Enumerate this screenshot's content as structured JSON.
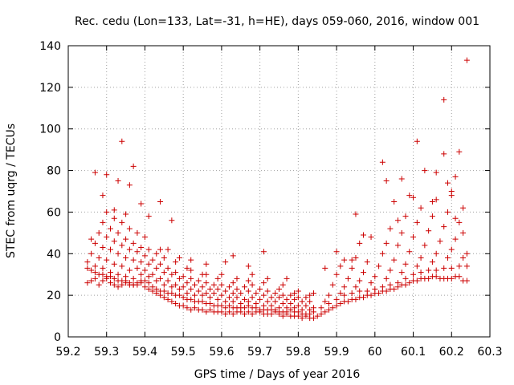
{
  "chart_data": {
    "type": "scatter",
    "title": "Rec. cedu (Lon=133, Lat=-31, h=HE), days 059-060, 2016, window 001",
    "xlabel": "GPS time / Days of year 2016",
    "ylabel": "STEC from uqrg / TECUs",
    "xlim": [
      59.2,
      60.3
    ],
    "ylim": [
      0,
      140
    ],
    "xticks": [
      "59.2",
      "59.3",
      "59.4",
      "59.5",
      "59.6",
      "59.7",
      "59.8",
      "59.9",
      "60",
      "60.1",
      "60.2",
      "60.3"
    ],
    "yticks": [
      "0",
      "20",
      "40",
      "60",
      "80",
      "100",
      "120",
      "140"
    ],
    "marker": "+",
    "color": "#cc0000",
    "points": [
      [
        59.25,
        26
      ],
      [
        59.26,
        27
      ],
      [
        59.27,
        28
      ],
      [
        59.28,
        25
      ],
      [
        59.29,
        27
      ],
      [
        59.3,
        28
      ],
      [
        59.31,
        26
      ],
      [
        59.32,
        25
      ],
      [
        59.33,
        24
      ],
      [
        59.34,
        25
      ],
      [
        59.35,
        26
      ],
      [
        59.36,
        25
      ],
      [
        59.37,
        25
      ],
      [
        59.38,
        26
      ],
      [
        59.39,
        27
      ],
      [
        59.4,
        24
      ],
      [
        59.41,
        23
      ],
      [
        59.42,
        22
      ],
      [
        59.43,
        21
      ],
      [
        59.44,
        20
      ],
      [
        59.45,
        19
      ],
      [
        59.46,
        18
      ],
      [
        59.47,
        17
      ],
      [
        59.48,
        16
      ],
      [
        59.49,
        15
      ],
      [
        59.5,
        15
      ],
      [
        59.51,
        14
      ],
      [
        59.52,
        13
      ],
      [
        59.53,
        14
      ],
      [
        59.54,
        13
      ],
      [
        59.55,
        13
      ],
      [
        59.56,
        12
      ],
      [
        59.57,
        13
      ],
      [
        59.58,
        12
      ],
      [
        59.59,
        12
      ],
      [
        59.6,
        12
      ],
      [
        59.61,
        11
      ],
      [
        59.62,
        12
      ],
      [
        59.63,
        11
      ],
      [
        59.64,
        12
      ],
      [
        59.65,
        12
      ],
      [
        59.66,
        11
      ],
      [
        59.67,
        12
      ],
      [
        59.68,
        11
      ],
      [
        59.69,
        12
      ],
      [
        59.7,
        12
      ],
      [
        59.71,
        11
      ],
      [
        59.72,
        11
      ],
      [
        59.73,
        11
      ],
      [
        59.74,
        12
      ],
      [
        59.75,
        11
      ],
      [
        59.76,
        10
      ],
      [
        59.77,
        11
      ],
      [
        59.78,
        10
      ],
      [
        59.79,
        10
      ],
      [
        59.8,
        10
      ],
      [
        59.81,
        9
      ],
      [
        59.82,
        10
      ],
      [
        59.83,
        9
      ],
      [
        59.84,
        9
      ],
      [
        59.85,
        10
      ],
      [
        59.86,
        11
      ],
      [
        59.87,
        12
      ],
      [
        59.88,
        13
      ],
      [
        59.89,
        14
      ],
      [
        59.9,
        15
      ],
      [
        59.91,
        16
      ],
      [
        59.92,
        17
      ],
      [
        59.93,
        17
      ],
      [
        59.94,
        18
      ],
      [
        59.95,
        18
      ],
      [
        59.96,
        19
      ],
      [
        59.97,
        19
      ],
      [
        59.98,
        20
      ],
      [
        59.99,
        20
      ],
      [
        60.0,
        21
      ],
      [
        60.01,
        21
      ],
      [
        60.02,
        22
      ],
      [
        60.03,
        22
      ],
      [
        60.04,
        23
      ],
      [
        60.05,
        23
      ],
      [
        60.06,
        24
      ],
      [
        60.07,
        25
      ],
      [
        60.08,
        25
      ],
      [
        60.09,
        26
      ],
      [
        60.1,
        27
      ],
      [
        60.11,
        27
      ],
      [
        60.12,
        28
      ],
      [
        60.13,
        28
      ],
      [
        60.14,
        28
      ],
      [
        60.15,
        29
      ],
      [
        60.16,
        29
      ],
      [
        60.17,
        28
      ],
      [
        60.18,
        28
      ],
      [
        60.19,
        28
      ],
      [
        60.2,
        28
      ],
      [
        60.21,
        29
      ],
      [
        60.22,
        29
      ],
      [
        60.23,
        27
      ],
      [
        60.24,
        27
      ],
      [
        59.25,
        33
      ],
      [
        59.26,
        32
      ],
      [
        59.27,
        31
      ],
      [
        59.28,
        30
      ],
      [
        59.29,
        30
      ],
      [
        59.3,
        29
      ],
      [
        59.31,
        29
      ],
      [
        59.32,
        28
      ],
      [
        59.33,
        27
      ],
      [
        59.34,
        27
      ],
      [
        59.35,
        27
      ],
      [
        59.36,
        26
      ],
      [
        59.37,
        25
      ],
      [
        59.38,
        25
      ],
      [
        59.39,
        26
      ],
      [
        59.4,
        27
      ],
      [
        59.41,
        26
      ],
      [
        59.42,
        24
      ],
      [
        59.43,
        23
      ],
      [
        59.44,
        22
      ],
      [
        59.45,
        22
      ],
      [
        59.46,
        21
      ],
      [
        59.47,
        21
      ],
      [
        59.48,
        20
      ],
      [
        59.49,
        20
      ],
      [
        59.5,
        19
      ],
      [
        59.51,
        18
      ],
      [
        59.52,
        18
      ],
      [
        59.53,
        17
      ],
      [
        59.54,
        17
      ],
      [
        59.55,
        17
      ],
      [
        59.56,
        16
      ],
      [
        59.57,
        16
      ],
      [
        59.58,
        15
      ],
      [
        59.59,
        15
      ],
      [
        59.6,
        15
      ],
      [
        59.61,
        14
      ],
      [
        59.62,
        15
      ],
      [
        59.63,
        14
      ],
      [
        59.64,
        14
      ],
      [
        59.65,
        14
      ],
      [
        59.66,
        14
      ],
      [
        59.67,
        15
      ],
      [
        59.68,
        14
      ],
      [
        59.69,
        14
      ],
      [
        59.7,
        13
      ],
      [
        59.71,
        13
      ],
      [
        59.72,
        13
      ],
      [
        59.73,
        13
      ],
      [
        59.74,
        13
      ],
      [
        59.75,
        12
      ],
      [
        59.76,
        12
      ],
      [
        59.77,
        12
      ],
      [
        59.78,
        13
      ],
      [
        59.79,
        12
      ],
      [
        59.8,
        12
      ],
      [
        59.81,
        11
      ],
      [
        59.82,
        11
      ],
      [
        59.83,
        11
      ],
      [
        59.84,
        12
      ],
      [
        59.86,
        14
      ],
      [
        59.88,
        16
      ],
      [
        59.9,
        18
      ],
      [
        59.92,
        20
      ],
      [
        59.94,
        21
      ],
      [
        59.96,
        22
      ],
      [
        59.98,
        22
      ],
      [
        60.0,
        23
      ],
      [
        60.02,
        24
      ],
      [
        60.04,
        25
      ],
      [
        60.06,
        26
      ],
      [
        60.08,
        28
      ],
      [
        60.1,
        30
      ],
      [
        60.12,
        31
      ],
      [
        60.14,
        32
      ],
      [
        60.16,
        32
      ],
      [
        60.18,
        33
      ],
      [
        60.2,
        33
      ],
      [
        60.22,
        34
      ],
      [
        60.24,
        34
      ],
      [
        59.25,
        36
      ],
      [
        59.27,
        34
      ],
      [
        59.29,
        33
      ],
      [
        59.31,
        31
      ],
      [
        59.33,
        30
      ],
      [
        59.35,
        29
      ],
      [
        59.37,
        28
      ],
      [
        59.39,
        30
      ],
      [
        59.41,
        29
      ],
      [
        59.43,
        27
      ],
      [
        59.45,
        25
      ],
      [
        59.47,
        24
      ],
      [
        59.49,
        23
      ],
      [
        59.51,
        21
      ],
      [
        59.53,
        20
      ],
      [
        59.55,
        20
      ],
      [
        59.57,
        19
      ],
      [
        59.59,
        18
      ],
      [
        59.61,
        17
      ],
      [
        59.63,
        17
      ],
      [
        59.65,
        16
      ],
      [
        59.67,
        17
      ],
      [
        59.69,
        16
      ],
      [
        59.71,
        15
      ],
      [
        59.73,
        15
      ],
      [
        59.75,
        14
      ],
      [
        59.77,
        14
      ],
      [
        59.79,
        14
      ],
      [
        59.81,
        13
      ],
      [
        59.83,
        13
      ],
      [
        59.87,
        17
      ],
      [
        59.91,
        21
      ],
      [
        59.95,
        24
      ],
      [
        59.99,
        26
      ],
      [
        60.03,
        28
      ],
      [
        60.07,
        31
      ],
      [
        60.11,
        34
      ],
      [
        60.15,
        36
      ],
      [
        60.19,
        38
      ],
      [
        60.23,
        38
      ],
      [
        59.26,
        40
      ],
      [
        59.28,
        38
      ],
      [
        59.3,
        37
      ],
      [
        59.32,
        35
      ],
      [
        59.34,
        34
      ],
      [
        59.36,
        32
      ],
      [
        59.38,
        33
      ],
      [
        59.4,
        32
      ],
      [
        59.42,
        30
      ],
      [
        59.44,
        28
      ],
      [
        59.46,
        27
      ],
      [
        59.48,
        25
      ],
      [
        59.5,
        24
      ],
      [
        59.52,
        23
      ],
      [
        59.54,
        22
      ],
      [
        59.56,
        21
      ],
      [
        59.58,
        21
      ],
      [
        59.6,
        20
      ],
      [
        59.62,
        19
      ],
      [
        59.64,
        19
      ],
      [
        59.66,
        18
      ],
      [
        59.68,
        19
      ],
      [
        59.7,
        18
      ],
      [
        59.72,
        17
      ],
      [
        59.74,
        17
      ],
      [
        59.76,
        16
      ],
      [
        59.78,
        16
      ],
      [
        59.8,
        15
      ],
      [
        59.82,
        15
      ],
      [
        59.84,
        14
      ],
      [
        59.88,
        20
      ],
      [
        59.92,
        24
      ],
      [
        59.96,
        27
      ],
      [
        60.0,
        29
      ],
      [
        60.04,
        32
      ],
      [
        60.08,
        35
      ],
      [
        60.12,
        38
      ],
      [
        60.16,
        40
      ],
      [
        60.2,
        42
      ],
      [
        60.24,
        40
      ],
      [
        59.27,
        45
      ],
      [
        59.29,
        43
      ],
      [
        59.31,
        42
      ],
      [
        59.33,
        40
      ],
      [
        59.35,
        38
      ],
      [
        59.37,
        37
      ],
      [
        59.39,
        36
      ],
      [
        59.41,
        35
      ],
      [
        59.43,
        33
      ],
      [
        59.45,
        31
      ],
      [
        59.47,
        30
      ],
      [
        59.49,
        28
      ],
      [
        59.51,
        26
      ],
      [
        59.53,
        25
      ],
      [
        59.55,
        24
      ],
      [
        59.57,
        23
      ],
      [
        59.59,
        23
      ],
      [
        59.61,
        22
      ],
      [
        59.63,
        21
      ],
      [
        59.65,
        21
      ],
      [
        59.67,
        22
      ],
      [
        59.69,
        21
      ],
      [
        59.71,
        20
      ],
      [
        59.73,
        19
      ],
      [
        59.75,
        19
      ],
      [
        59.77,
        18
      ],
      [
        59.79,
        18
      ],
      [
        59.81,
        17
      ],
      [
        59.83,
        17
      ],
      [
        59.89,
        25
      ],
      [
        59.93,
        28
      ],
      [
        59.97,
        31
      ],
      [
        60.01,
        34
      ],
      [
        60.05,
        37
      ],
      [
        60.09,
        41
      ],
      [
        60.13,
        44
      ],
      [
        60.17,
        46
      ],
      [
        60.21,
        47
      ],
      [
        59.28,
        50
      ],
      [
        59.3,
        48
      ],
      [
        59.32,
        46
      ],
      [
        59.34,
        44
      ],
      [
        59.36,
        42
      ],
      [
        59.38,
        41
      ],
      [
        59.4,
        39
      ],
      [
        59.42,
        37
      ],
      [
        59.44,
        35
      ],
      [
        59.46,
        33
      ],
      [
        59.48,
        31
      ],
      [
        59.5,
        29
      ],
      [
        59.52,
        28
      ],
      [
        59.54,
        27
      ],
      [
        59.56,
        26
      ],
      [
        59.58,
        25
      ],
      [
        59.6,
        25
      ],
      [
        59.62,
        24
      ],
      [
        59.64,
        23
      ],
      [
        59.66,
        24
      ],
      [
        59.68,
        25
      ],
      [
        59.7,
        23
      ],
      [
        59.72,
        22
      ],
      [
        59.74,
        21
      ],
      [
        59.76,
        20
      ],
      [
        59.78,
        20
      ],
      [
        59.8,
        19
      ],
      [
        59.82,
        19
      ],
      [
        59.9,
        30
      ],
      [
        59.94,
        33
      ],
      [
        59.98,
        36
      ],
      [
        60.02,
        40
      ],
      [
        60.06,
        44
      ],
      [
        60.1,
        48
      ],
      [
        60.14,
        51
      ],
      [
        60.18,
        53
      ],
      [
        60.22,
        55
      ],
      [
        59.29,
        55
      ],
      [
        59.31,
        52
      ],
      [
        59.33,
        50
      ],
      [
        59.35,
        47
      ],
      [
        59.37,
        45
      ],
      [
        59.39,
        43
      ],
      [
        59.41,
        42
      ],
      [
        59.43,
        40
      ],
      [
        59.45,
        38
      ],
      [
        59.51,
        33
      ],
      [
        59.55,
        30
      ],
      [
        59.59,
        28
      ],
      [
        59.63,
        26
      ],
      [
        59.67,
        27
      ],
      [
        59.71,
        26
      ],
      [
        59.75,
        23
      ],
      [
        59.79,
        21
      ],
      [
        59.83,
        20
      ],
      [
        59.91,
        34
      ],
      [
        59.95,
        38
      ],
      [
        60.03,
        45
      ],
      [
        60.07,
        50
      ],
      [
        60.11,
        55
      ],
      [
        60.15,
        58
      ],
      [
        60.19,
        60
      ],
      [
        60.23,
        62
      ],
      [
        59.3,
        60
      ],
      [
        59.32,
        57
      ],
      [
        59.34,
        55
      ],
      [
        59.36,
        52
      ],
      [
        59.38,
        50
      ],
      [
        59.4,
        48
      ],
      [
        59.44,
        42
      ],
      [
        59.48,
        36
      ],
      [
        59.52,
        32
      ],
      [
        59.56,
        30
      ],
      [
        59.6,
        30
      ],
      [
        59.64,
        28
      ],
      [
        59.68,
        30
      ],
      [
        59.72,
        28
      ],
      [
        59.76,
        25
      ],
      [
        59.8,
        22
      ],
      [
        59.84,
        21
      ],
      [
        59.92,
        37
      ],
      [
        59.96,
        45
      ],
      [
        60.04,
        52
      ],
      [
        60.08,
        58
      ],
      [
        60.12,
        62
      ],
      [
        60.16,
        66
      ],
      [
        60.2,
        68
      ],
      [
        59.26,
        47
      ],
      [
        59.27,
        79
      ],
      [
        59.29,
        68
      ],
      [
        59.3,
        78
      ],
      [
        59.32,
        61
      ],
      [
        59.33,
        75
      ],
      [
        59.34,
        94
      ],
      [
        59.35,
        59
      ],
      [
        59.36,
        73
      ],
      [
        59.37,
        82
      ],
      [
        59.39,
        64
      ],
      [
        59.41,
        58
      ],
      [
        59.44,
        65
      ],
      [
        59.46,
        42
      ],
      [
        59.47,
        56
      ],
      [
        59.49,
        38
      ],
      [
        59.52,
        37
      ],
      [
        59.56,
        35
      ],
      [
        59.61,
        36
      ],
      [
        59.63,
        39
      ],
      [
        59.67,
        34
      ],
      [
        59.71,
        41
      ],
      [
        59.77,
        28
      ],
      [
        59.87,
        33
      ],
      [
        59.9,
        41
      ],
      [
        59.94,
        37
      ],
      [
        59.95,
        59
      ],
      [
        59.97,
        49
      ],
      [
        59.99,
        48
      ],
      [
        60.02,
        84
      ],
      [
        60.03,
        75
      ],
      [
        60.05,
        65
      ],
      [
        60.06,
        56
      ],
      [
        60.07,
        76
      ],
      [
        60.09,
        68
      ],
      [
        60.1,
        67
      ],
      [
        60.11,
        94
      ],
      [
        60.13,
        80
      ],
      [
        60.15,
        65
      ],
      [
        60.16,
        79
      ],
      [
        60.18,
        88
      ],
      [
        60.18,
        114
      ],
      [
        60.19,
        74
      ],
      [
        60.2,
        70
      ],
      [
        60.21,
        77
      ],
      [
        60.22,
        89
      ],
      [
        60.24,
        133
      ],
      [
        60.23,
        50
      ],
      [
        60.21,
        57
      ]
    ]
  }
}
